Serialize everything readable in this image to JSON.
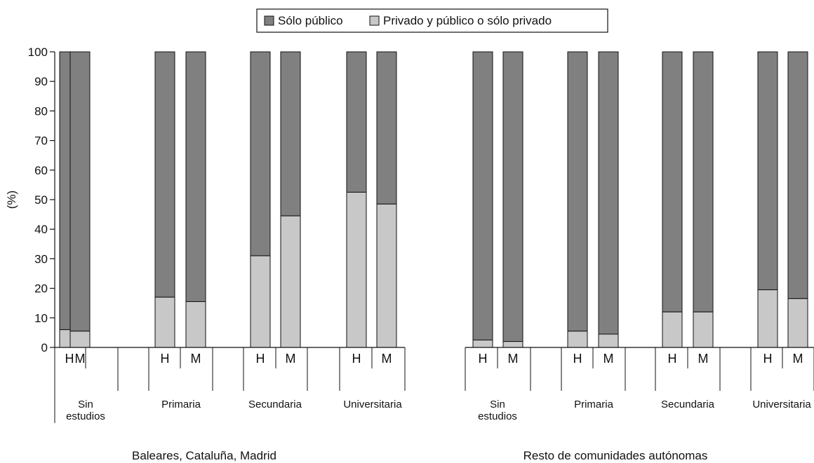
{
  "chart_data": {
    "type": "bar",
    "stacked": true,
    "ylabel": "(%)",
    "ylim": [
      0,
      100
    ],
    "yticks": [
      0,
      10,
      20,
      30,
      40,
      50,
      60,
      70,
      80,
      90,
      100
    ],
    "legend": {
      "placement": "top-center",
      "entries": [
        "Sólo público",
        "Privado y público o sólo privado"
      ]
    },
    "colors": {
      "solo_publico": "#808080",
      "privado": "#c8c8c8",
      "stroke": "#111111"
    },
    "regions": [
      {
        "label": "Baleares, Cataluña, Madrid",
        "groups": [
          {
            "label_lines": [
              "Sin",
              "estudios"
            ],
            "bars": [
              {
                "sex": "H",
                "privado": 6,
                "solo_publico": 94
              },
              {
                "sex": "M",
                "privado": 5.5,
                "solo_publico": 94.5
              }
            ]
          },
          {
            "label_lines": [
              "Primaria"
            ],
            "bars": [
              {
                "sex": "H",
                "privado": 17,
                "solo_publico": 83
              },
              {
                "sex": "M",
                "privado": 15.5,
                "solo_publico": 84.5
              }
            ]
          },
          {
            "label_lines": [
              "Secundaria"
            ],
            "bars": [
              {
                "sex": "H",
                "privado": 31,
                "solo_publico": 69
              },
              {
                "sex": "M",
                "privado": 44.5,
                "solo_publico": 55.5
              }
            ]
          },
          {
            "label_lines": [
              "Universitaria"
            ],
            "bars": [
              {
                "sex": "H",
                "privado": 52.5,
                "solo_publico": 47.5
              },
              {
                "sex": "M",
                "privado": 48.5,
                "solo_publico": 51.5
              }
            ]
          }
        ]
      },
      {
        "label": "Resto de comunidades autónomas",
        "groups": [
          {
            "label_lines": [
              "Sin",
              "estudios"
            ],
            "bars": [
              {
                "sex": "H",
                "privado": 2.5,
                "solo_publico": 97.5
              },
              {
                "sex": "M",
                "privado": 2,
                "solo_publico": 98
              }
            ]
          },
          {
            "label_lines": [
              "Primaria"
            ],
            "bars": [
              {
                "sex": "H",
                "privado": 5.5,
                "solo_publico": 94.5
              },
              {
                "sex": "M",
                "privado": 4.5,
                "solo_publico": 95.5
              }
            ]
          },
          {
            "label_lines": [
              "Secundaria"
            ],
            "bars": [
              {
                "sex": "H",
                "privado": 12,
                "solo_publico": 88
              },
              {
                "sex": "M",
                "privado": 12,
                "solo_publico": 88
              }
            ]
          },
          {
            "label_lines": [
              "Universitaria"
            ],
            "bars": [
              {
                "sex": "H",
                "privado": 19.5,
                "solo_publico": 80.5
              },
              {
                "sex": "M",
                "privado": 16.5,
                "solo_publico": 83.5
              }
            ]
          }
        ]
      }
    ]
  }
}
